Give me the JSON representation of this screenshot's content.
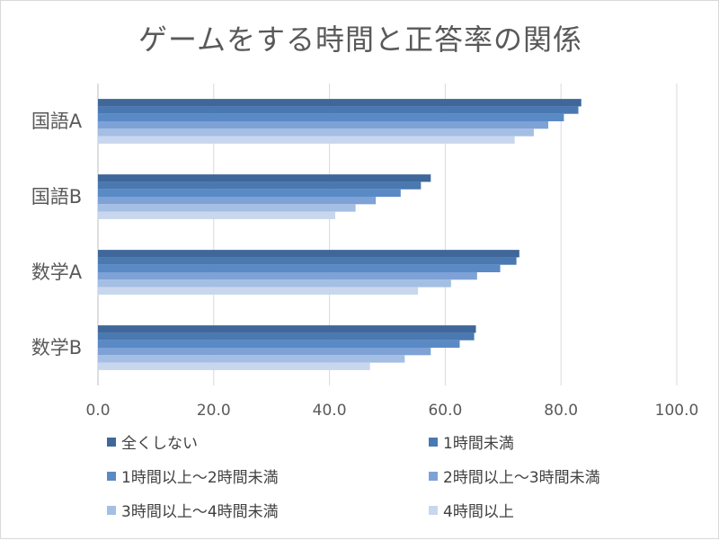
{
  "chart_data": {
    "type": "bar",
    "orientation": "horizontal",
    "title": "ゲームをする時間と正答率の関係",
    "categories": [
      "国語A",
      "国語B",
      "数学A",
      "数学B"
    ],
    "series": [
      {
        "name": "全くしない",
        "color": "#3f679a",
        "values": [
          83.5,
          57.5,
          72.8,
          65.3
        ]
      },
      {
        "name": "1時間未満",
        "color": "#4a78b0",
        "values": [
          83.0,
          55.8,
          72.3,
          65.0
        ]
      },
      {
        "name": "1時間以上～2時間未満",
        "color": "#5a8ac6",
        "values": [
          80.5,
          52.3,
          69.5,
          62.5
        ]
      },
      {
        "name": "2時間以上～3時間未満",
        "color": "#7ea2d6",
        "values": [
          77.8,
          48.0,
          65.5,
          57.5
        ]
      },
      {
        "name": "3時間以上～4時間未満",
        "color": "#a4bfe3",
        "values": [
          75.3,
          44.5,
          61.0,
          53.0
        ]
      },
      {
        "name": "4時間以上",
        "color": "#c8d7ee",
        "values": [
          72.0,
          41.0,
          55.3,
          47.0
        ]
      }
    ],
    "xlim": [
      0,
      100
    ],
    "x_ticks": [
      "0.0",
      "20.0",
      "40.0",
      "60.0",
      "80.0",
      "100.0"
    ],
    "grid": true,
    "legend_position": "bottom"
  }
}
